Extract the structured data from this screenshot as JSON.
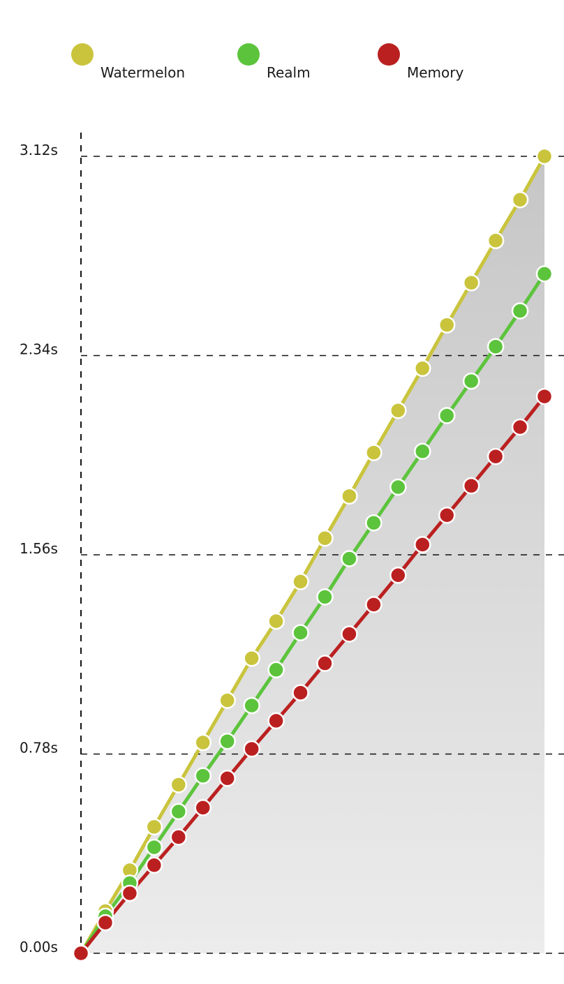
{
  "chart_data": {
    "type": "line",
    "title": "",
    "xlabel": "",
    "ylabel": "",
    "ylim": [
      0,
      3.12
    ],
    "grid": true,
    "legend_position": "top",
    "y_ticks": [
      {
        "value": 0.0,
        "label": "0.00s"
      },
      {
        "value": 0.78,
        "label": "0.78s"
      },
      {
        "value": 1.56,
        "label": "1.56s"
      },
      {
        "value": 2.34,
        "label": "2.34s"
      },
      {
        "value": 3.12,
        "label": "3.12s"
      }
    ],
    "x": [
      0,
      1,
      2,
      3,
      4,
      5,
      6,
      7,
      8,
      9,
      10,
      11,
      12,
      13,
      14,
      15,
      16,
      17,
      18,
      19
    ],
    "series": [
      {
        "name": "Watermelon",
        "color": "#c9c43c",
        "values": [
          0.0,
          0.165,
          0.325,
          0.495,
          0.66,
          0.825,
          0.99,
          1.155,
          1.3,
          1.455,
          1.625,
          1.79,
          1.96,
          2.125,
          2.29,
          2.46,
          2.625,
          2.79,
          2.95,
          3.12
        ]
      },
      {
        "name": "Realm",
        "color": "#5cc43c",
        "values": [
          0.0,
          0.145,
          0.275,
          0.415,
          0.555,
          0.695,
          0.83,
          0.97,
          1.11,
          1.255,
          1.395,
          1.545,
          1.685,
          1.825,
          1.965,
          2.105,
          2.24,
          2.375,
          2.515,
          2.66
        ]
      },
      {
        "name": "Memory",
        "color": "#bb2020",
        "values": [
          0.0,
          0.12,
          0.235,
          0.345,
          0.455,
          0.57,
          0.685,
          0.8,
          0.91,
          1.02,
          1.135,
          1.25,
          1.365,
          1.48,
          1.6,
          1.715,
          1.83,
          1.945,
          2.06,
          2.18
        ]
      }
    ]
  }
}
